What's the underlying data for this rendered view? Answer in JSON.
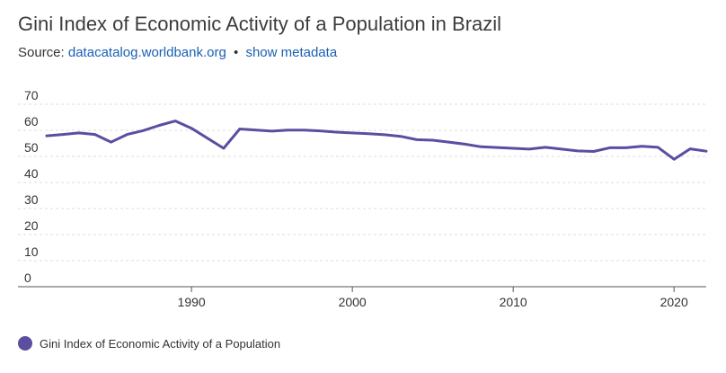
{
  "header": {
    "title": "Gini Index of Economic Activity of a Population in Brazil",
    "source_prefix": "Source:",
    "source_link": "datacatalog.worldbank.org",
    "separator": "•",
    "metadata_link": "show metadata"
  },
  "colors": {
    "series": "#5b4ea0",
    "link": "#1a5fb4",
    "grid": "#dddddd"
  },
  "chart_data": {
    "type": "line",
    "title": "Gini Index of Economic Activity of a Population in Brazil",
    "xlabel": "",
    "ylabel": "",
    "ylim": [
      0,
      70
    ],
    "xlim": [
      1981,
      2022
    ],
    "yticks": [
      0,
      10,
      20,
      30,
      40,
      50,
      60,
      70
    ],
    "xticks": [
      1990,
      2000,
      2010,
      2020
    ],
    "grid": true,
    "legend_position": "bottom-left",
    "series": [
      {
        "name": "Gini Index of Economic Activity of a Population",
        "x": [
          1981,
          1982,
          1983,
          1984,
          1985,
          1986,
          1987,
          1988,
          1989,
          1990,
          1992,
          1993,
          1995,
          1996,
          1997,
          1998,
          1999,
          2001,
          2002,
          2003,
          2004,
          2005,
          2006,
          2007,
          2008,
          2009,
          2011,
          2012,
          2013,
          2014,
          2015,
          2016,
          2017,
          2018,
          2019,
          2020,
          2021,
          2022
        ],
        "values": [
          57.9,
          58.4,
          59.0,
          58.4,
          55.5,
          58.4,
          59.9,
          61.9,
          63.6,
          60.8,
          53.1,
          60.5,
          59.7,
          60.1,
          60.1,
          59.8,
          59.3,
          58.7,
          58.3,
          57.7,
          56.4,
          56.2,
          55.5,
          54.7,
          53.7,
          53.4,
          52.8,
          53.5,
          52.8,
          52.1,
          51.9,
          53.3,
          53.3,
          53.9,
          53.5,
          48.9,
          52.9,
          52.0
        ]
      }
    ]
  }
}
